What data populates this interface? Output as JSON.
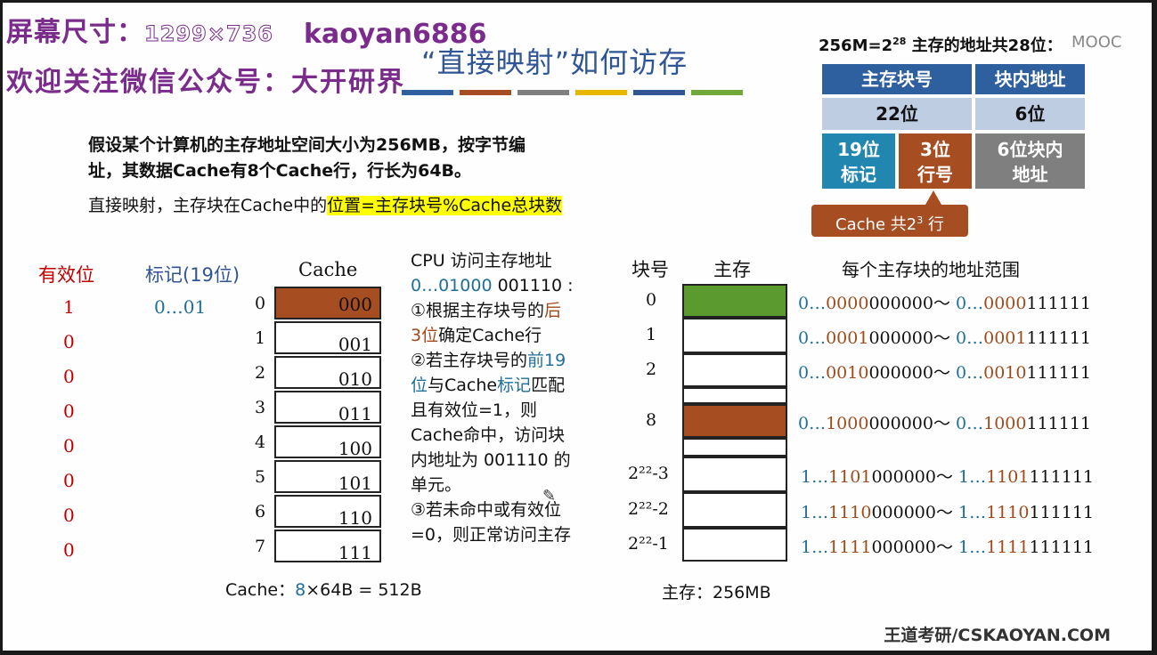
{
  "watermark": {
    "line1_prefix": "屏幕尺寸：",
    "line1_size": "1299×736",
    "line1_rest": "kaoyan6886",
    "line2": "欢迎关注微信公众号：大开研界"
  },
  "title": "“直接映射”如何访存",
  "intro": {
    "line1": "假设某个计算机的主存地址空间大小为256MB，按字节编",
    "line2": "址，其数据Cache有8个Cache行，行长为64B。",
    "line3_prefix": "直接映射，主存块在Cache中的",
    "line3_highlight": "位置=主存块号%Cache总块数"
  },
  "colors": {
    "bars": [
      "#2e5f9e",
      "#a64d22",
      "#7f7f7f",
      "#e6b800",
      "#2f5597",
      "#70a83a"
    ],
    "cache_hit": "#a64d22",
    "mem_block0": "#5b9a2e",
    "mem_block8": "#a64d22"
  },
  "cache": {
    "valid_header": "有效位",
    "tag_header": "标记(19位)",
    "cache_header": "Cache",
    "valid_bits": [
      "1",
      "0",
      "0",
      "0",
      "0",
      "0",
      "0",
      "0"
    ],
    "tag_first": "0…01",
    "rows": [
      {
        "idx": "0",
        "val": "000"
      },
      {
        "idx": "1",
        "val": "001"
      },
      {
        "idx": "2",
        "val": "010"
      },
      {
        "idx": "3",
        "val": "011"
      },
      {
        "idx": "4",
        "val": "100"
      },
      {
        "idx": "5",
        "val": "101"
      },
      {
        "idx": "6",
        "val": "110"
      },
      {
        "idx": "7",
        "val": "111"
      }
    ],
    "summary_prefix": "Cache：",
    "summary_num": "8",
    "summary_rest": "×64B = 512B"
  },
  "cpu": {
    "l1": "CPU 访问主存地址",
    "addr_a": "0…01000",
    "addr_b": " 001110 :",
    "l3a": "①根据主存块号的",
    "l3b": "后",
    "l4a": "3位",
    "l4b": "确定Cache行",
    "l5a": "②若主存块号的",
    "l5b": "前19",
    "l6a": "位",
    "l6b": "与Cache",
    "l6c": "标记",
    "l6d": "匹配",
    "l7": "且有效位=1，则",
    "l8": "Cache命中，访问块",
    "l9": "内地址为 001110 的",
    "l10": "单元。",
    "l11": "③若未命中或有效位",
    "l12": "=0，则正常访问主存"
  },
  "memory": {
    "block_header": "块号",
    "mem_header": "主存",
    "range_header": "每个主存块的地址范围",
    "rows": [
      {
        "label": "0",
        "a": "0…",
        "b": "0000",
        "c": "000000～ ",
        "d": "0…",
        "e": "0000",
        "f": "111111"
      },
      {
        "label": "1",
        "a": "0…",
        "b": "0001",
        "c": "000000～ ",
        "d": "0…",
        "e": "0001",
        "f": "111111"
      },
      {
        "label": "2",
        "a": "0…",
        "b": "0010",
        "c": "000000～ ",
        "d": "0…",
        "e": "0010",
        "f": "111111"
      },
      {
        "label": "8",
        "a": "0…",
        "b": "1000",
        "c": "000000～ ",
        "d": "0…",
        "e": "1000",
        "f": "111111"
      },
      {
        "label": "2²²-3",
        "a": "1…",
        "b": "1101",
        "c": "000000～ ",
        "d": "1…",
        "e": "1101",
        "f": "111111"
      },
      {
        "label": "2²²-2",
        "a": "1…",
        "b": "1110",
        "c": "000000～ ",
        "d": "1…",
        "e": "1110",
        "f": "111111"
      },
      {
        "label": "2²²-1",
        "a": "1…",
        "b": "1111",
        "c": "000000～ ",
        "d": "1…",
        "e": "1111",
        "f": "111111"
      }
    ],
    "summary": "主存：256MB"
  },
  "addr_format": {
    "heading_a": "256M=2",
    "heading_sup": "28",
    "heading_b": " 主存的地址共28位：",
    "mooc": "MOOC",
    "r1c1": "主存块号",
    "r1c2": "块内地址",
    "r2c1": "22位",
    "r2c2": "6位",
    "tag_l1": "19位",
    "tag_l2": "标记",
    "line_l1": "3位",
    "line_l2": "行号",
    "off_l1": "6位块内",
    "off_l2": "地址",
    "callout_a": "Cache 共2",
    "callout_sup": "3",
    "callout_b": " 行"
  },
  "footer": "王道考研/CSKAOYAN.COM"
}
